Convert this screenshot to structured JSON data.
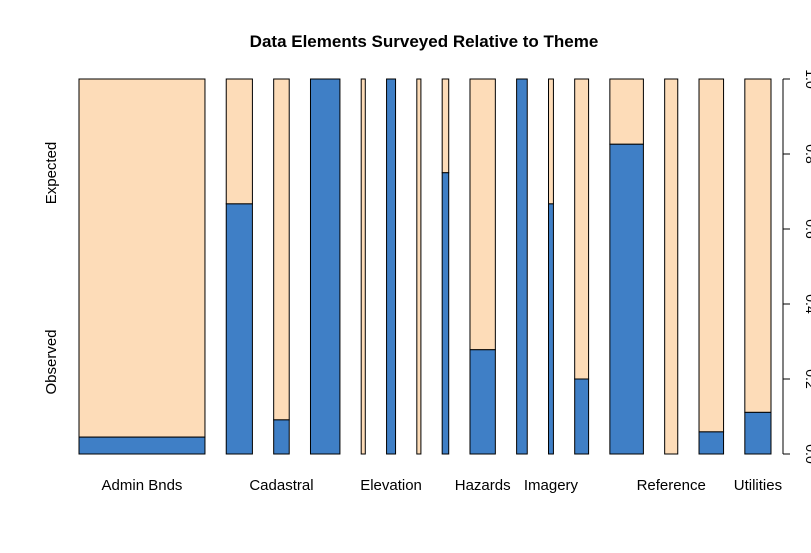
{
  "chart_data": {
    "type": "bar",
    "subtype": "spineplot",
    "title": "Data Elements Surveyed Relative to Theme",
    "xlabel": "",
    "ylabel": "",
    "y_category_labels": [
      "Observed",
      "Expected"
    ],
    "ylim": [
      0,
      1
    ],
    "y_ticks": [
      "0.0",
      "0.2",
      "0.4",
      "0.6",
      "0.8",
      "1.0"
    ],
    "y_axis_side": "right",
    "grid": false,
    "colors": {
      "observed": "#3f7fc6",
      "expected": "#fddcb8",
      "outline": "#000000"
    },
    "categories_shown": [
      "Admin Bnds",
      "Cadastral",
      "Elevation",
      "Hazards",
      "Imagery",
      "Reference",
      "Utilities"
    ],
    "bars": [
      {
        "label": "Admin Bnds",
        "width": 0.154,
        "observed": 0.045
      },
      {
        "label": "",
        "width": 0.032,
        "observed": 0.667
      },
      {
        "label": "Cadastral",
        "width": 0.019,
        "observed": 0.091
      },
      {
        "label": "",
        "width": 0.036,
        "observed": 1.0
      },
      {
        "label": "",
        "width": 0.005,
        "observed": 0.0
      },
      {
        "label": "Elevation",
        "width": 0.011,
        "observed": 1.0
      },
      {
        "label": "",
        "width": 0.005,
        "observed": 0.0
      },
      {
        "label": "",
        "width": 0.008,
        "observed": 0.75
      },
      {
        "label": "Hazards",
        "width": 0.031,
        "observed": 0.278
      },
      {
        "label": "",
        "width": 0.013,
        "observed": 1.0
      },
      {
        "label": "Imagery",
        "width": 0.006,
        "observed": 0.667
      },
      {
        "label": "",
        "width": 0.017,
        "observed": 0.2
      },
      {
        "label": "",
        "width": 0.041,
        "observed": 0.826
      },
      {
        "label": "Reference",
        "width": 0.016,
        "observed": 0.0
      },
      {
        "label": "",
        "width": 0.03,
        "observed": 0.059
      },
      {
        "label": "Utilities",
        "width": 0.032,
        "observed": 0.111
      }
    ]
  }
}
